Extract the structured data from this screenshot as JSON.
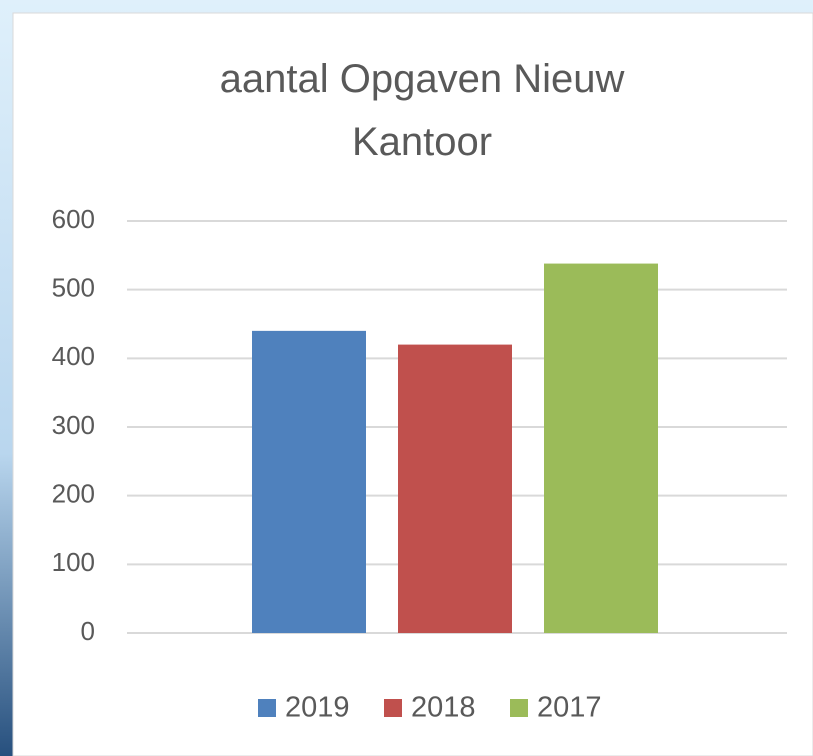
{
  "chart_data": {
    "type": "bar",
    "title": "aantal Opgaven Nieuw Kantoor",
    "categories": [
      null
    ],
    "series": [
      {
        "name": "2019",
        "color": "#4f81bd",
        "values": [
          440
        ]
      },
      {
        "name": "2018",
        "color": "#c0504d",
        "values": [
          420
        ]
      },
      {
        "name": "2017",
        "color": "#9bbb59",
        "values": [
          538
        ]
      }
    ],
    "ylim": [
      0,
      600
    ],
    "yticks": [
      0,
      100,
      200,
      300,
      400,
      500,
      600
    ],
    "grid": true,
    "legend": "bottom"
  }
}
